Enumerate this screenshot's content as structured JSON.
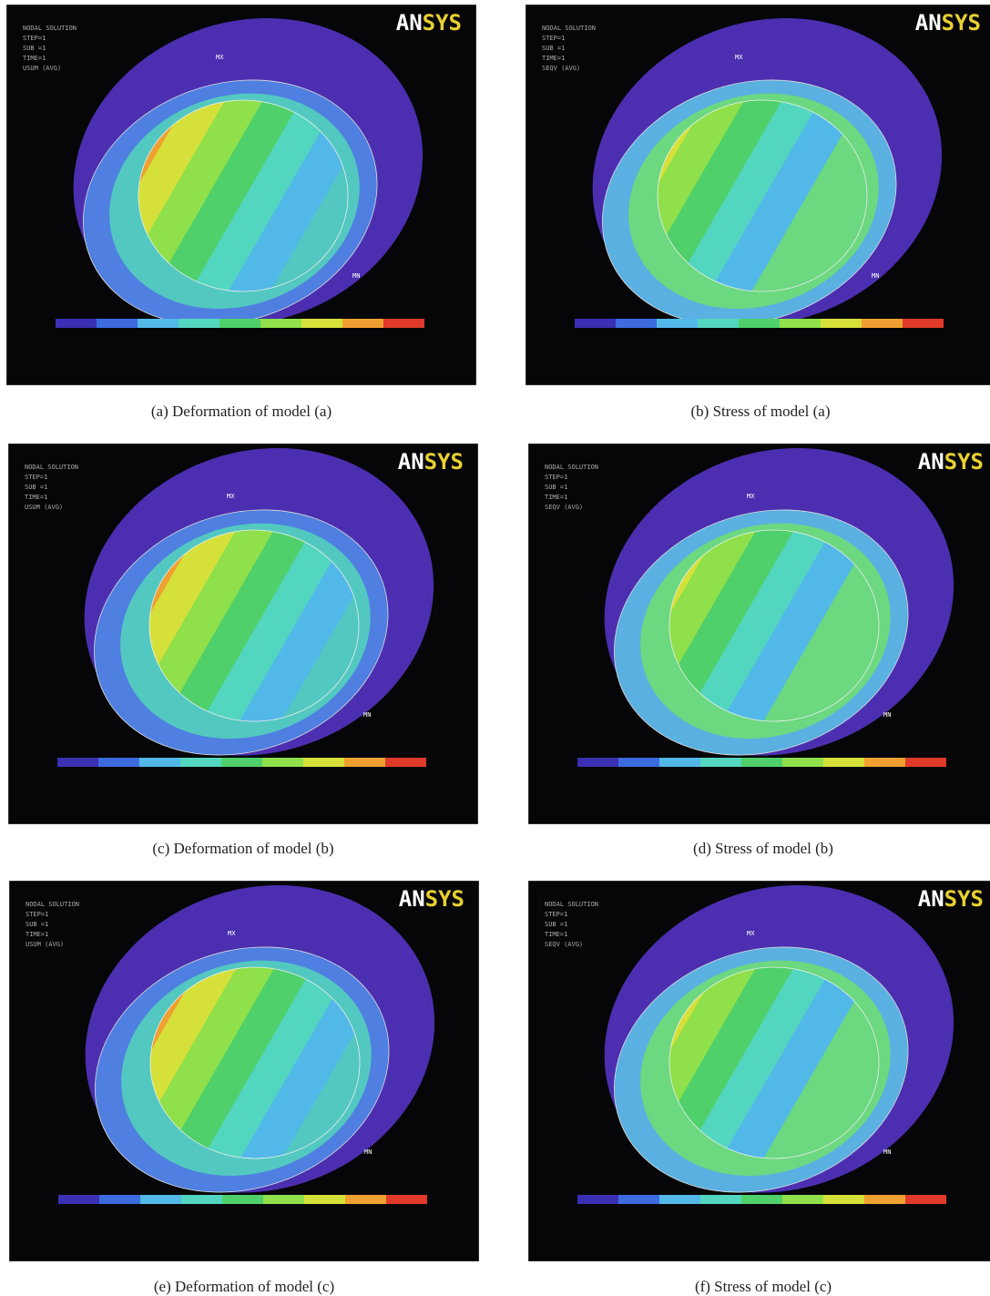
{
  "figure": {
    "panels": [
      {
        "logo": "ANSYS",
        "caption": "(a) Deformation of model (a)",
        "info": [
          "NODAL SOLUTION",
          "STEP=1",
          "SUB =1",
          "TIME=1",
          "USUM (AVG)"
        ],
        "markers": [
          "MX",
          "MN"
        ]
      },
      {
        "logo": "ANSYS",
        "caption": "(b) Stress of model (a)",
        "info": [
          "NODAL SOLUTION",
          "STEP=1",
          "SUB =1",
          "TIME=1",
          "SEQV (AVG)"
        ],
        "markers": [
          "MX",
          "MN"
        ]
      },
      {
        "logo": "ANSYS",
        "caption": "(c) Deformation of model (b)",
        "info": [
          "NODAL SOLUTION",
          "STEP=1",
          "SUB =1",
          "TIME=1",
          "USUM (AVG)"
        ],
        "markers": [
          "MX",
          "MN"
        ]
      },
      {
        "logo": "ANSYS",
        "caption": "(d) Stress of model (b)",
        "info": [
          "NODAL SOLUTION",
          "STEP=1",
          "SUB =1",
          "TIME=1",
          "SEQV (AVG)"
        ],
        "markers": [
          "MX",
          "MN"
        ]
      },
      {
        "logo": "ANSYS",
        "caption": "(e) Deformation of model (c)",
        "info": [
          "NODAL SOLUTION",
          "STEP=1",
          "SUB =1",
          "TIME=1",
          "USUM (AVG)"
        ],
        "markers": [
          "MX",
          "MN"
        ]
      },
      {
        "logo": "ANSYS",
        "caption": "(f) Stress of model (c)",
        "info": [
          "NODAL SOLUTION",
          "STEP=1",
          "SUB =1",
          "TIME=1",
          "SEQV (AVG)"
        ],
        "markers": [
          "MX",
          "MN"
        ]
      }
    ]
  }
}
